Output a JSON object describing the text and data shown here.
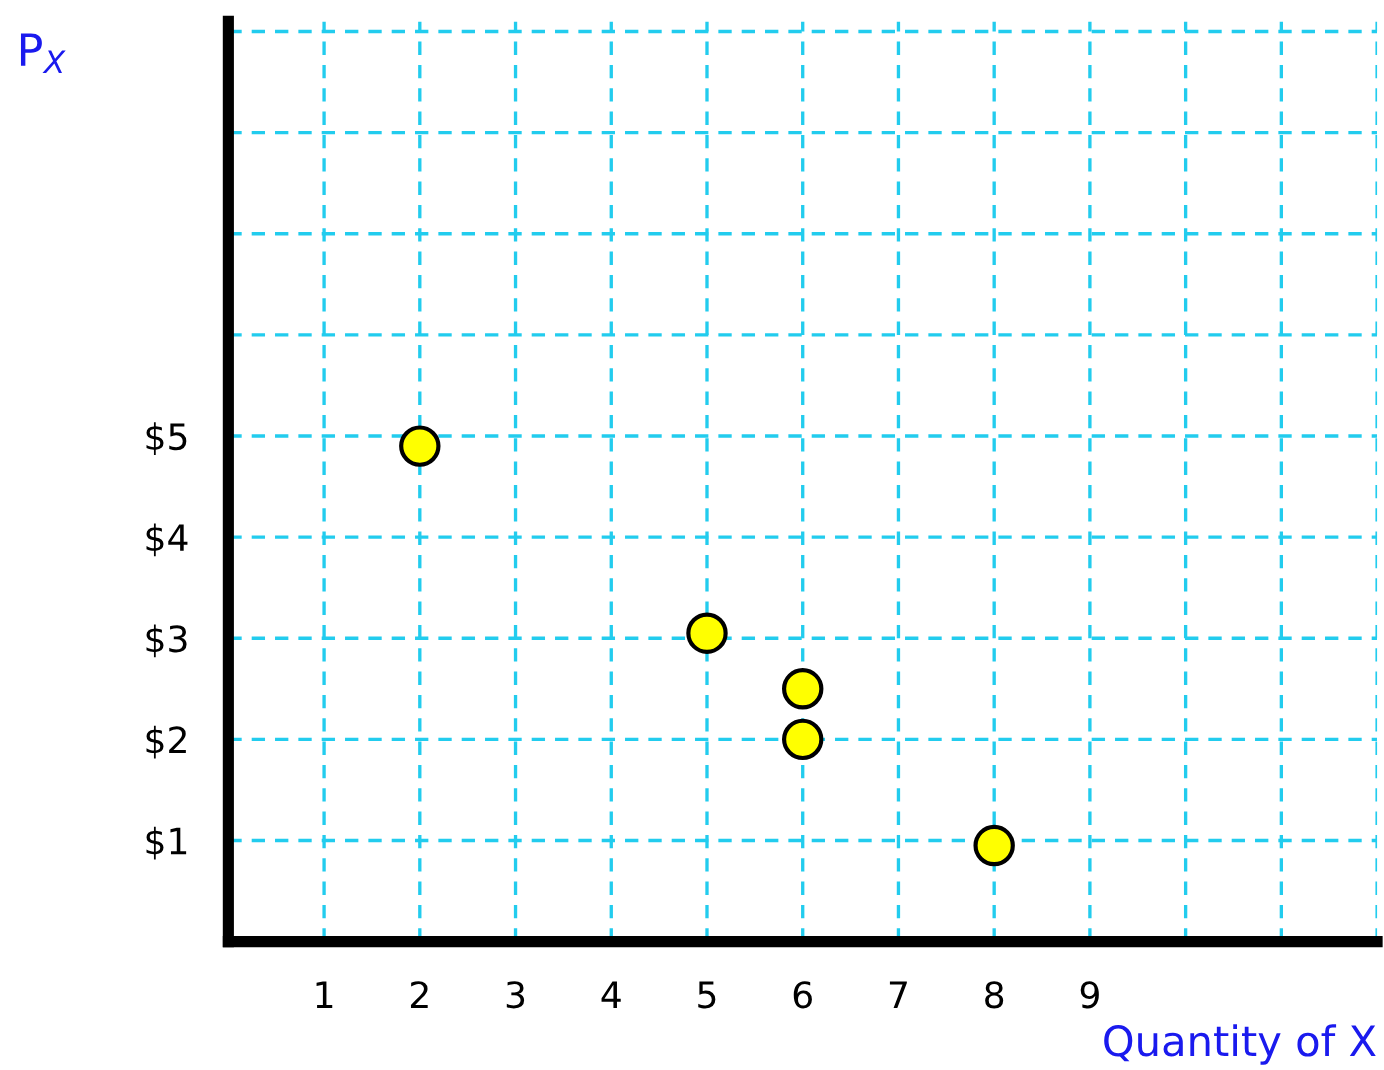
{
  "chart_data": {
    "type": "scatter",
    "xlabel": "Quantity of X",
    "ylabel": "P$_{X}$",
    "x": [
      2,
      5,
      6,
      6,
      8
    ],
    "series": [
      {
        "color": "#ffff00",
        "values": [
          4.9,
          3.05,
          2.5,
          2.0,
          0.95
        ]
      }
    ],
    "xlim": [
      0,
      12
    ],
    "ylim": [
      0,
      9.1
    ],
    "xticks": [
      1,
      2,
      3,
      4,
      5,
      6,
      7,
      8,
      9,
      {
        "value": 10,
        "label": null
      },
      {
        "value": 11,
        "label": null
      },
      {
        "value": 12,
        "label": null
      }
    ],
    "yticks": [
      {
        "value": 1,
        "label": "$1"
      },
      {
        "value": 2,
        "label": "$2"
      },
      {
        "value": 3,
        "label": "$3"
      },
      {
        "value": 4,
        "label": "$4"
      },
      {
        "value": 5,
        "label": "$5"
      },
      {
        "value": 6,
        "label": null
      },
      {
        "value": 7,
        "label": null
      },
      {
        "value": 8,
        "label": null
      },
      {
        "value": 9,
        "label": null
      }
    ],
    "grid": true,
    "marker": "circle"
  }
}
